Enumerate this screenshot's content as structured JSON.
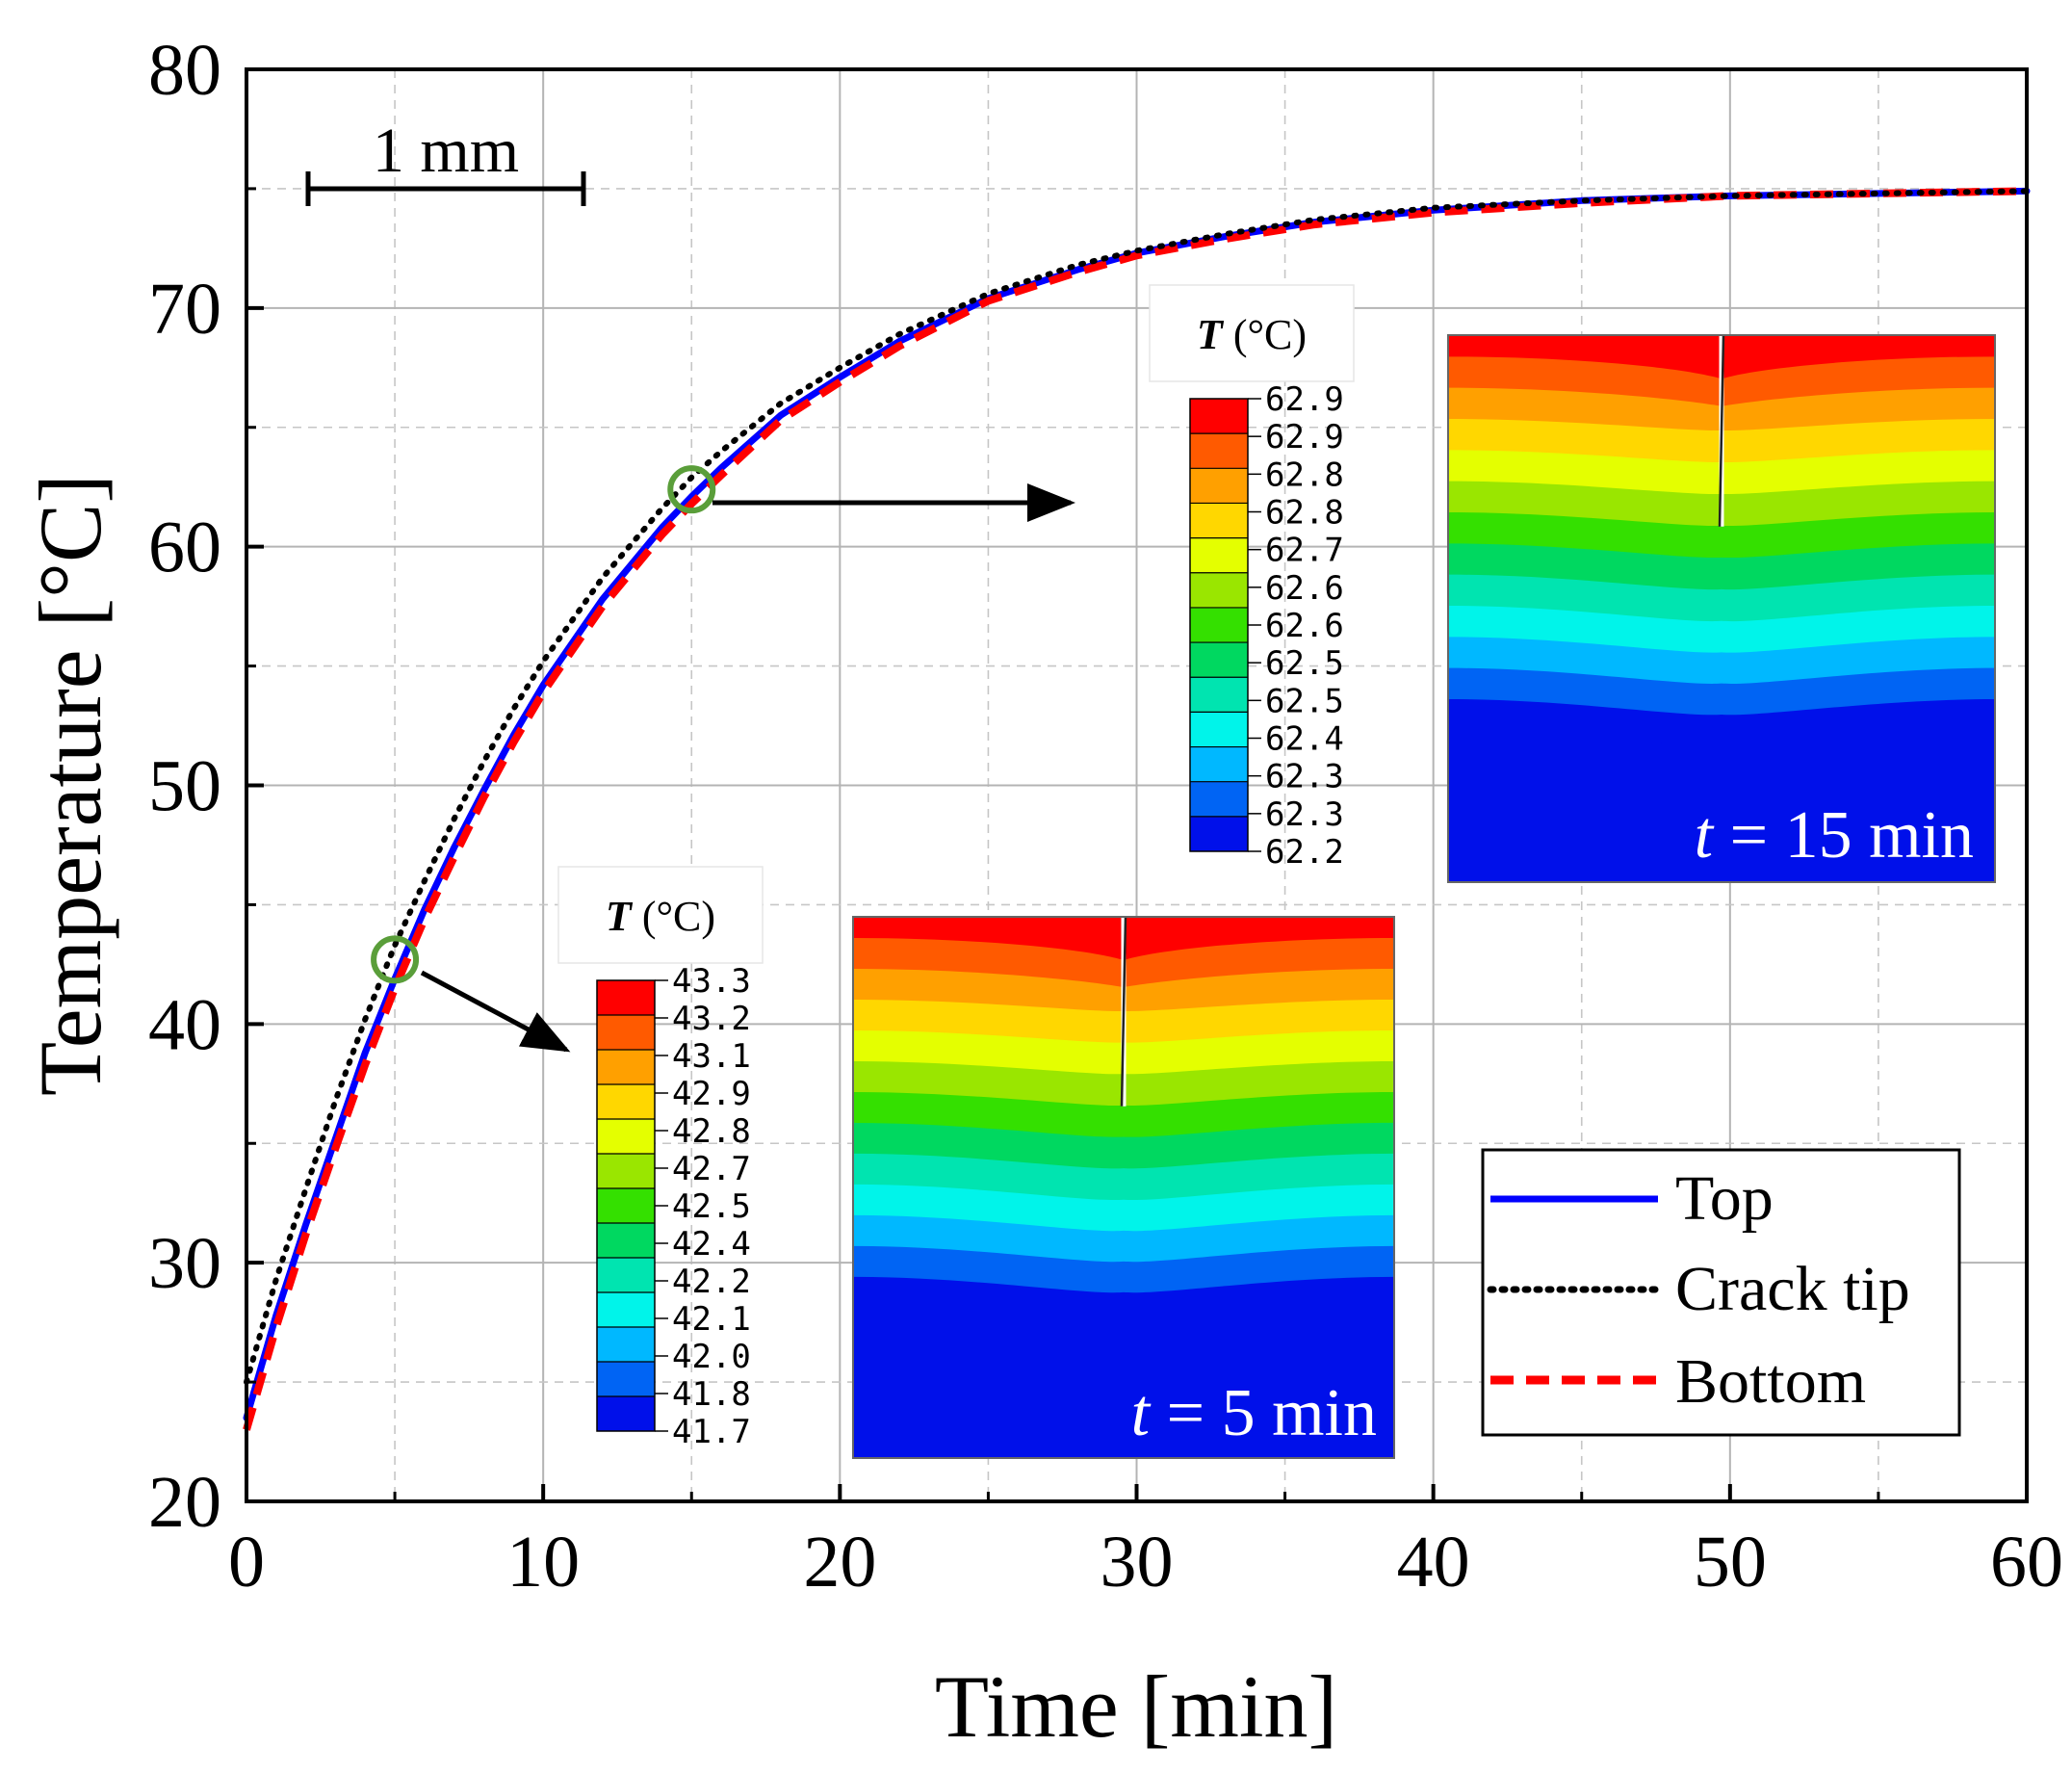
{
  "chart_data": {
    "type": "line",
    "xlabel": "Time [min]",
    "ylabel": "Temperature [°C]",
    "xlim": [
      0,
      60
    ],
    "ylim": [
      20,
      80
    ],
    "xticks": [
      "0",
      "10",
      "20",
      "30",
      "40",
      "50",
      "60"
    ],
    "yticks": [
      "20",
      "30",
      "40",
      "50",
      "60",
      "70",
      "80"
    ],
    "grid": true,
    "scale_bar_label": "1 mm",
    "series": [
      {
        "name": "Top",
        "color": "#0000ff",
        "style": "solid",
        "x": [
          0,
          1,
          2,
          3,
          4,
          5,
          6,
          7,
          8,
          9,
          10,
          12,
          14,
          15,
          16,
          18,
          20,
          22,
          25,
          28,
          30,
          33,
          36,
          40,
          45,
          50,
          55,
          60
        ],
        "y": [
          23.5,
          27.8,
          31.6,
          35.2,
          38.8,
          41.9,
          44.8,
          47.4,
          49.8,
          52.1,
          54.2,
          57.8,
          60.8,
          62.1,
          63.3,
          65.5,
          67.1,
          68.6,
          70.4,
          71.6,
          72.3,
          73.0,
          73.6,
          74.1,
          74.5,
          74.7,
          74.8,
          74.9
        ]
      },
      {
        "name": "Crack tip",
        "color": "#000000",
        "style": "dotted",
        "x": [
          0,
          1,
          2,
          3,
          4,
          5,
          6,
          7,
          8,
          9,
          10,
          12,
          14,
          15,
          16,
          18,
          20,
          22,
          25,
          28,
          30,
          33,
          36,
          40,
          45,
          50,
          55,
          60
        ],
        "y": [
          25.0,
          29.3,
          33.1,
          36.8,
          40.2,
          43.3,
          46.0,
          48.6,
          51.0,
          53.2,
          55.2,
          58.7,
          61.6,
          62.9,
          64.0,
          66.0,
          67.5,
          68.9,
          70.6,
          71.8,
          72.4,
          73.1,
          73.7,
          74.2,
          74.5,
          74.7,
          74.8,
          74.9
        ]
      },
      {
        "name": "Bottom",
        "color": "#ff0000",
        "style": "dashed",
        "x": [
          0,
          1,
          2,
          3,
          4,
          5,
          6,
          7,
          8,
          9,
          10,
          12,
          14,
          15,
          16,
          18,
          20,
          22,
          25,
          28,
          30,
          33,
          36,
          40,
          45,
          50,
          55,
          60
        ],
        "y": [
          23.0,
          27.3,
          31.2,
          34.8,
          38.3,
          41.5,
          44.4,
          47.0,
          49.5,
          51.8,
          53.9,
          57.5,
          60.5,
          61.8,
          63.0,
          65.3,
          66.9,
          68.4,
          70.3,
          71.5,
          72.2,
          72.9,
          73.5,
          74.0,
          74.4,
          74.7,
          74.8,
          74.9
        ]
      }
    ],
    "markers": [
      {
        "x": 5,
        "y": 42.7,
        "color": "#5a9e3a"
      },
      {
        "x": 15,
        "y": 62.4,
        "color": "#5a9e3a"
      }
    ],
    "insets": [
      {
        "time_label_t": "t",
        "time_label_rest": " = 5 min",
        "colorbar_title_t": "T",
        "colorbar_title_rest": " (°C)",
        "colorbar_values": [
          "43.3",
          "43.2",
          "43.1",
          "42.9",
          "42.8",
          "42.7",
          "42.5",
          "42.4",
          "42.2",
          "42.1",
          "42.0",
          "41.8",
          "41.7"
        ]
      },
      {
        "time_label_t": "t",
        "time_label_rest": " = 15 min",
        "colorbar_title_t": "T",
        "colorbar_title_rest": " (°C)",
        "colorbar_values": [
          "62.9",
          "62.9",
          "62.8",
          "62.8",
          "62.7",
          "62.6",
          "62.6",
          "62.5",
          "62.5",
          "62.4",
          "62.3",
          "62.3",
          "62.2"
        ]
      }
    ],
    "colormap": [
      "#ff0000",
      "#ff5a00",
      "#ffa000",
      "#ffd700",
      "#e4ff00",
      "#9ae600",
      "#34e000",
      "#00d860",
      "#00e4b0",
      "#00f4ea",
      "#00b8ff",
      "#0064f4",
      "#0010ea"
    ],
    "legend_position": "bottom-right"
  }
}
